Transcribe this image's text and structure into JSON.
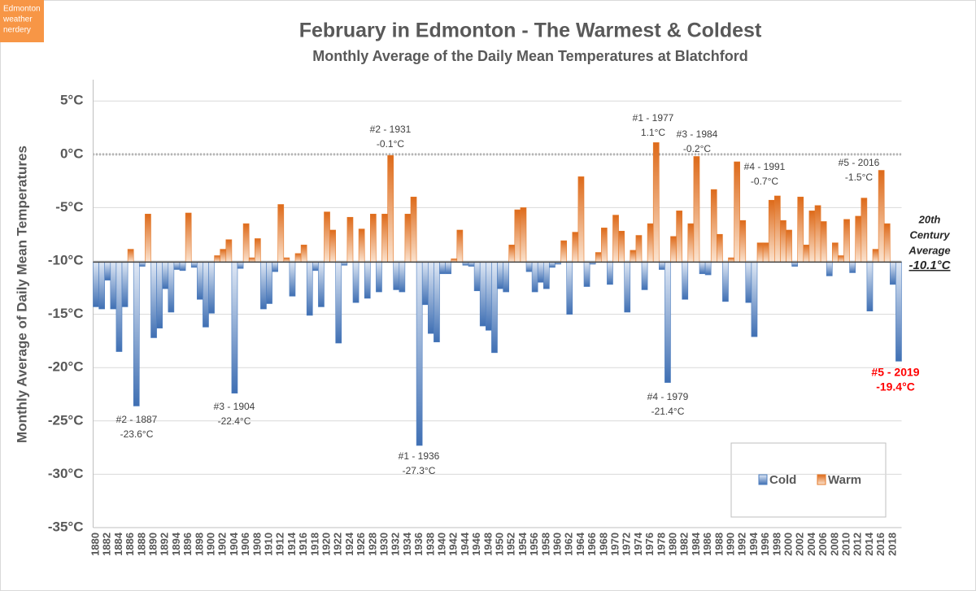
{
  "badge": [
    "Edmonton",
    "weather",
    "nerdery"
  ],
  "chart_data": {
    "type": "bar",
    "title": "February in Edmonton - The Warmest & Coldest",
    "subtitle": "Monthly Average of the Daily Mean Temperatures at Blatchford",
    "y_label": "Monthly Average of Daily Mean Temperatures",
    "categories": [
      "1880",
      null,
      "1882",
      null,
      "1884",
      null,
      "1886",
      null,
      "1888",
      null,
      "1890",
      null,
      "1892",
      null,
      "1894",
      null,
      "1896",
      null,
      "1898",
      null,
      "1900",
      null,
      "1902",
      null,
      "1904",
      null,
      "1906",
      null,
      "1908",
      null,
      "1910",
      null,
      "1912",
      null,
      "1914",
      null,
      "1916",
      null,
      "1918",
      null,
      "1920",
      null,
      "1922",
      null,
      "1924",
      null,
      "1926",
      null,
      "1928",
      null,
      "1930",
      null,
      "1932",
      null,
      "1934",
      null,
      "1936",
      null,
      "1938",
      null,
      "1940",
      null,
      "1942",
      null,
      "1944",
      null,
      "1946",
      null,
      "1948",
      null,
      "1950",
      null,
      "1952",
      null,
      "1954",
      null,
      "1956",
      null,
      "1958",
      null,
      "1960",
      null,
      "1962",
      null,
      "1964",
      null,
      "1966",
      null,
      "1968",
      null,
      "1970",
      null,
      "1972",
      null,
      "1974",
      null,
      "1976",
      null,
      "1978",
      null,
      "1980",
      null,
      "1982",
      null,
      "1984",
      null,
      "1986",
      null,
      "1988",
      null,
      "1990",
      null,
      "1992",
      null,
      "1994",
      null,
      "1996",
      null,
      "1998",
      null,
      "2000",
      null,
      "2002",
      null,
      "2004",
      null,
      "2006",
      null,
      "2008",
      null,
      "2010",
      null,
      "2012",
      null,
      "2014",
      null,
      "2016",
      null,
      "2018",
      null
    ],
    "values": [
      -14.3,
      -14.5,
      -11.8,
      -14.5,
      -18.5,
      -14.3,
      -8.9,
      -23.6,
      -10.5,
      -5.6,
      -17.2,
      -16.3,
      -12.6,
      -14.8,
      -10.8,
      -10.9,
      -5.5,
      -10.6,
      -13.6,
      -16.2,
      -14.9,
      -9.5,
      -8.9,
      -8.0,
      -22.4,
      -10.7,
      -6.5,
      -9.7,
      -7.9,
      -14.5,
      -14.0,
      -11.0,
      -4.7,
      -9.7,
      -13.3,
      -9.3,
      -8.5,
      -15.1,
      -10.9,
      -14.3,
      -5.4,
      -7.1,
      -17.7,
      -10.4,
      -5.9,
      -13.9,
      -7.0,
      -13.5,
      -5.6,
      -12.9,
      -5.6,
      -0.1,
      -12.7,
      -12.9,
      -5.6,
      -4.0,
      -27.3,
      -14.1,
      -16.8,
      -17.6,
      -11.2,
      -11.2,
      -9.8,
      -7.1,
      -10.4,
      -10.5,
      -12.8,
      -16.1,
      -16.5,
      -18.6,
      -12.6,
      -12.9,
      -8.5,
      -5.2,
      -5.0,
      -11.0,
      -12.9,
      -12.0,
      -12.6,
      -10.6,
      -10.3,
      -8.1,
      -15.0,
      -7.3,
      -2.1,
      -12.4,
      -10.3,
      -9.2,
      -6.9,
      -12.2,
      -5.7,
      -7.2,
      -14.8,
      -9.0,
      -7.6,
      -12.7,
      -6.5,
      1.1,
      -10.8,
      -21.4,
      -7.7,
      -5.3,
      -13.6,
      -6.5,
      -0.2,
      -11.2,
      -11.3,
      -3.3,
      -7.5,
      -13.8,
      -9.7,
      -0.7,
      -6.2,
      -13.9,
      -17.1,
      -8.3,
      -8.3,
      -4.3,
      -3.9,
      -6.2,
      -7.1,
      -10.5,
      -4.0,
      -8.5,
      -5.3,
      -4.8,
      -6.3,
      -11.4,
      -8.3,
      -9.5,
      -6.1,
      -11.1,
      -5.8,
      -4.1,
      -14.7,
      -8.9,
      -1.5,
      -6.5,
      -12.2,
      -19.4
    ],
    "baseline": -10.1,
    "baseline_title": [
      "20th",
      "Century",
      "Average"
    ],
    "baseline_label": "-10.1°C",
    "legend": [
      {
        "name": "Cold",
        "color": "#4f7fc0"
      },
      {
        "name": "Warm",
        "color": "#e57a2b"
      }
    ],
    "ylim": [
      -35,
      7
    ],
    "yticks": [
      {
        "value": -35,
        "label": "-35°C"
      },
      {
        "value": -30,
        "label": "-30°C"
      },
      {
        "value": -25,
        "label": "-25°C"
      },
      {
        "value": -20,
        "label": "-20°C"
      },
      {
        "value": -15,
        "label": "-15°C"
      },
      {
        "value": -10,
        "label": "-10°C"
      },
      {
        "value": -5,
        "label": "-5°C"
      },
      {
        "value": 0,
        "label": "0°C"
      },
      {
        "value": 5,
        "label": "5°C"
      }
    ],
    "grid": true,
    "annotations": [
      {
        "rank": "#2 - 1887",
        "value_label": "-23.6°C"
      },
      {
        "rank": "#3 - 1904",
        "value_label": "-22.4°C"
      },
      {
        "rank": "#1 - 1936",
        "value_label": "-27.3°C"
      },
      {
        "rank": "#4 - 1979",
        "value_label": "-21.4°C"
      },
      {
        "rank": "#5 - 2019",
        "value_label": "-19.4°C",
        "color": "#ff0000"
      },
      {
        "rank": "#2 - 1931",
        "value_label": "-0.1°C"
      },
      {
        "rank": "#1 - 1977",
        "value_label": "1.1°C"
      },
      {
        "rank": "#3 - 1984",
        "value_label": "-0.2°C"
      },
      {
        "rank": "#4 - 1991",
        "value_label": "-0.7°C"
      },
      {
        "rank": "#5 - 2016",
        "value_label": "-1.5°C"
      }
    ]
  }
}
